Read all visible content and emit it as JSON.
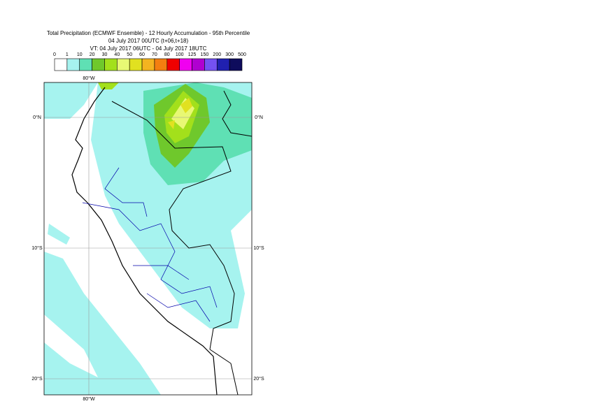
{
  "header": {
    "title": "Total Precipitation (ECMWF Ensemble) - 12 Hourly Accumulation - 95th Percentile",
    "base_time": "04 July 2017 00UTC (t+06,t+18)",
    "valid_time": "VT: 04 July 2017 06UTC - 04 July 2017 18UTC"
  },
  "legend": {
    "levels": [
      "0",
      "1",
      "10",
      "20",
      "30",
      "40",
      "50",
      "60",
      "70",
      "80",
      "100",
      "125",
      "150",
      "200",
      "300",
      "500"
    ],
    "colors": [
      "#ffffff",
      "#a6f3ef",
      "#5fe0b4",
      "#6fc82c",
      "#a3e01b",
      "#e8f874",
      "#e1e120",
      "#f4b420",
      "#f47f10",
      "#f00000",
      "#f000f0",
      "#b000d0",
      "#7451f2",
      "#2020b0",
      "#0e0c5c"
    ]
  },
  "map": {
    "top_labels": [
      "80°W"
    ],
    "bottom_labels": [
      "80°W"
    ],
    "left_labels": [
      "0°N",
      "10°S",
      "20°S"
    ],
    "right_labels": [
      "0°N",
      "10°S",
      "20°S"
    ]
  }
}
